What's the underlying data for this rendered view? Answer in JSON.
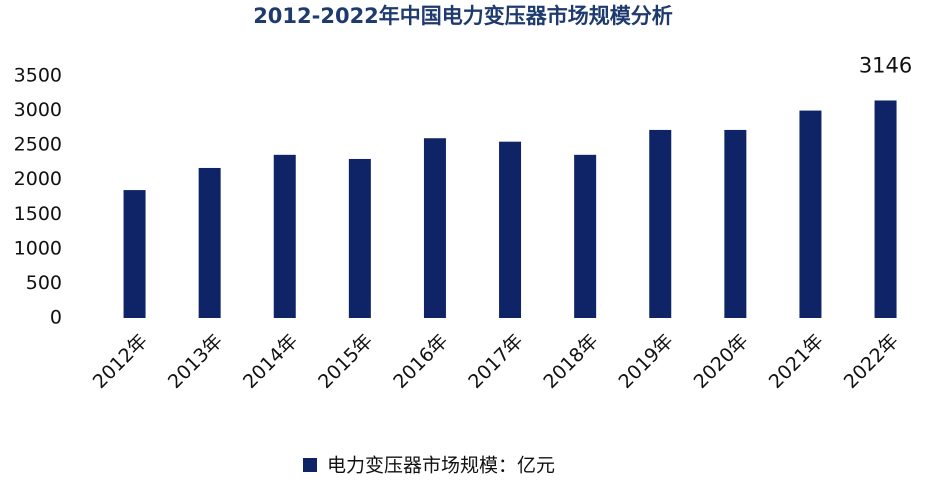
{
  "chart_data": {
    "type": "bar",
    "title": "2012-2022年中国电力变压器市场规模分析",
    "categories": [
      "2012年",
      "2013年",
      "2014年",
      "2015年",
      "2016年",
      "2017年",
      "2018年",
      "2019年",
      "2020年",
      "2021年",
      "2022年"
    ],
    "series": [
      {
        "name": "电力变压器市场规模：亿元",
        "color": "#0f2466",
        "values": [
          1850,
          2170,
          2360,
          2300,
          2600,
          2550,
          2360,
          2720,
          2720,
          3000,
          3146
        ]
      }
    ],
    "labeled_points": [
      10
    ],
    "ylim": [
      0,
      3500
    ],
    "yticks": [
      0,
      500,
      1000,
      1500,
      2000,
      2500,
      3000,
      3500
    ],
    "grid": false
  }
}
